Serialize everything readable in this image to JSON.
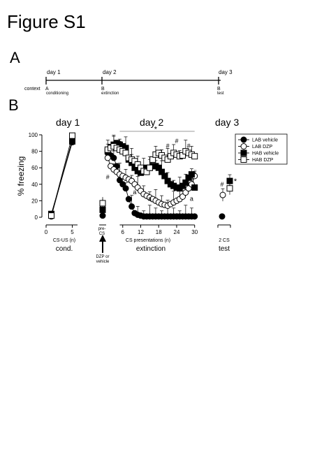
{
  "figure_title": "Figure S1",
  "panel_a": {
    "label": "A",
    "context_label": "context",
    "days": [
      "day 1",
      "day 2",
      "day 3"
    ],
    "contexts": [
      "A",
      "B",
      "B"
    ],
    "phases": [
      "conditioning",
      "extinction",
      "test"
    ]
  },
  "panel_b": {
    "label": "B"
  },
  "colors": {
    "ink": "#000000",
    "paper": "#ffffff",
    "bracket": "#999999"
  },
  "chart_data": [
    {
      "type": "line",
      "id": "day1",
      "title": "day 1",
      "xlabel": "CS-US (n)",
      "phase_label": "cond.",
      "ylabel": "% freezing",
      "ylim": [
        0,
        100
      ],
      "y_ticks": [
        0,
        20,
        40,
        60,
        80,
        100
      ],
      "x": [
        1,
        5
      ],
      "x_ticks": [
        0,
        5
      ],
      "xlim": [
        0,
        6
      ],
      "series": [
        {
          "name": "LAB vehicle",
          "marker": "circle-filled",
          "values": [
            3,
            91
          ]
        },
        {
          "name": "LAB DZP",
          "marker": "circle-open",
          "values": [
            1,
            94
          ]
        },
        {
          "name": "HAB vehicle",
          "marker": "square-filled",
          "values": [
            4,
            92
          ]
        },
        {
          "name": "HAB DZP",
          "marker": "square-open",
          "values": [
            2,
            99
          ]
        }
      ]
    },
    {
      "type": "line",
      "id": "day2",
      "title": "day 2",
      "xlabel": "CS presentations (n)",
      "phase_label": "extinction",
      "pre_cs_label": "pre-CS",
      "arrow_label": "DZP or vehicle",
      "ylim": [
        0,
        100
      ],
      "x_ticks": [
        6,
        12,
        18,
        24,
        30
      ],
      "xlim": [
        0,
        31
      ],
      "pre_cs": {
        "LAB vehicle": 2,
        "LAB DZP": 15,
        "HAB vehicle": 9,
        "HAB DZP": 17
      },
      "x": [
        1,
        2,
        3,
        4,
        5,
        6,
        7,
        8,
        9,
        10,
        11,
        12,
        13,
        14,
        15,
        16,
        17,
        18,
        19,
        20,
        21,
        22,
        23,
        24,
        25,
        26,
        27,
        28,
        29,
        30
      ],
      "series": [
        {
          "name": "LAB vehicle",
          "marker": "circle-filled",
          "values": [
            78,
            75,
            72,
            62,
            45,
            40,
            35,
            22,
            13,
            5,
            3,
            2,
            1,
            1,
            1,
            1,
            1,
            1,
            1,
            1,
            1,
            1,
            1,
            1,
            1,
            1,
            1,
            1,
            1,
            1
          ]
        },
        {
          "name": "LAB DZP",
          "marker": "circle-open",
          "values": [
            72,
            62,
            58,
            55,
            52,
            50,
            48,
            46,
            44,
            40,
            36,
            32,
            28,
            26,
            24,
            22,
            20,
            18,
            16,
            15,
            14,
            16,
            18,
            20,
            22,
            25,
            30,
            35,
            40,
            50
          ]
        },
        {
          "name": "HAB vehicle",
          "marker": "square-filled",
          "values": [
            80,
            85,
            88,
            90,
            88,
            86,
            84,
            70,
            66,
            60,
            56,
            54,
            58,
            60,
            60,
            62,
            62,
            60,
            55,
            50,
            44,
            40,
            38,
            36,
            35,
            38,
            42,
            48,
            52,
            36
          ]
        },
        {
          "name": "HAB DZP",
          "marker": "square-open",
          "values": [
            82,
            84,
            86,
            84,
            82,
            80,
            78,
            72,
            70,
            68,
            64,
            60,
            56,
            55,
            60,
            70,
            76,
            78,
            75,
            72,
            70,
            74,
            78,
            76,
            74,
            75,
            80,
            78,
            76,
            74
          ]
        }
      ],
      "annotations": [
        {
          "text": "*",
          "x": 17,
          "y": 104
        },
        {
          "text": "#",
          "x": 1,
          "y": 46
        },
        {
          "text": "#",
          "x": 21,
          "y": 84
        },
        {
          "text": "#",
          "x": 24,
          "y": 90
        },
        {
          "text": "#",
          "x": 28,
          "y": 84
        },
        {
          "text": "#",
          "x": 30,
          "y": 52
        },
        {
          "text": "a",
          "x": 10,
          "y": 28
        },
        {
          "text": "a",
          "x": 15,
          "y": 20
        },
        {
          "text": "a",
          "x": 29,
          "y": 20
        }
      ]
    },
    {
      "type": "scatter",
      "id": "day3",
      "title": "day 3",
      "xlabel": "2 CS",
      "phase_label": "test",
      "ylim": [
        0,
        100
      ],
      "series": [
        {
          "name": "LAB vehicle",
          "marker": "circle-filled",
          "values": [
            1
          ]
        },
        {
          "name": "LAB DZP",
          "marker": "circle-open",
          "values": [
            27
          ]
        },
        {
          "name": "HAB vehicle",
          "marker": "square-filled",
          "values": [
            44
          ]
        },
        {
          "name": "HAB DZP",
          "marker": "square-open",
          "values": [
            35
          ]
        }
      ],
      "annotations": [
        {
          "text": "#",
          "series": "LAB DZP"
        },
        {
          "text": "*",
          "series": "HAB vehicle"
        }
      ]
    }
  ],
  "legend": {
    "placement": "top-right",
    "entries": [
      "LAB vehicle",
      "LAB DZP",
      "HAB vehicle",
      "HAB DZP"
    ]
  }
}
